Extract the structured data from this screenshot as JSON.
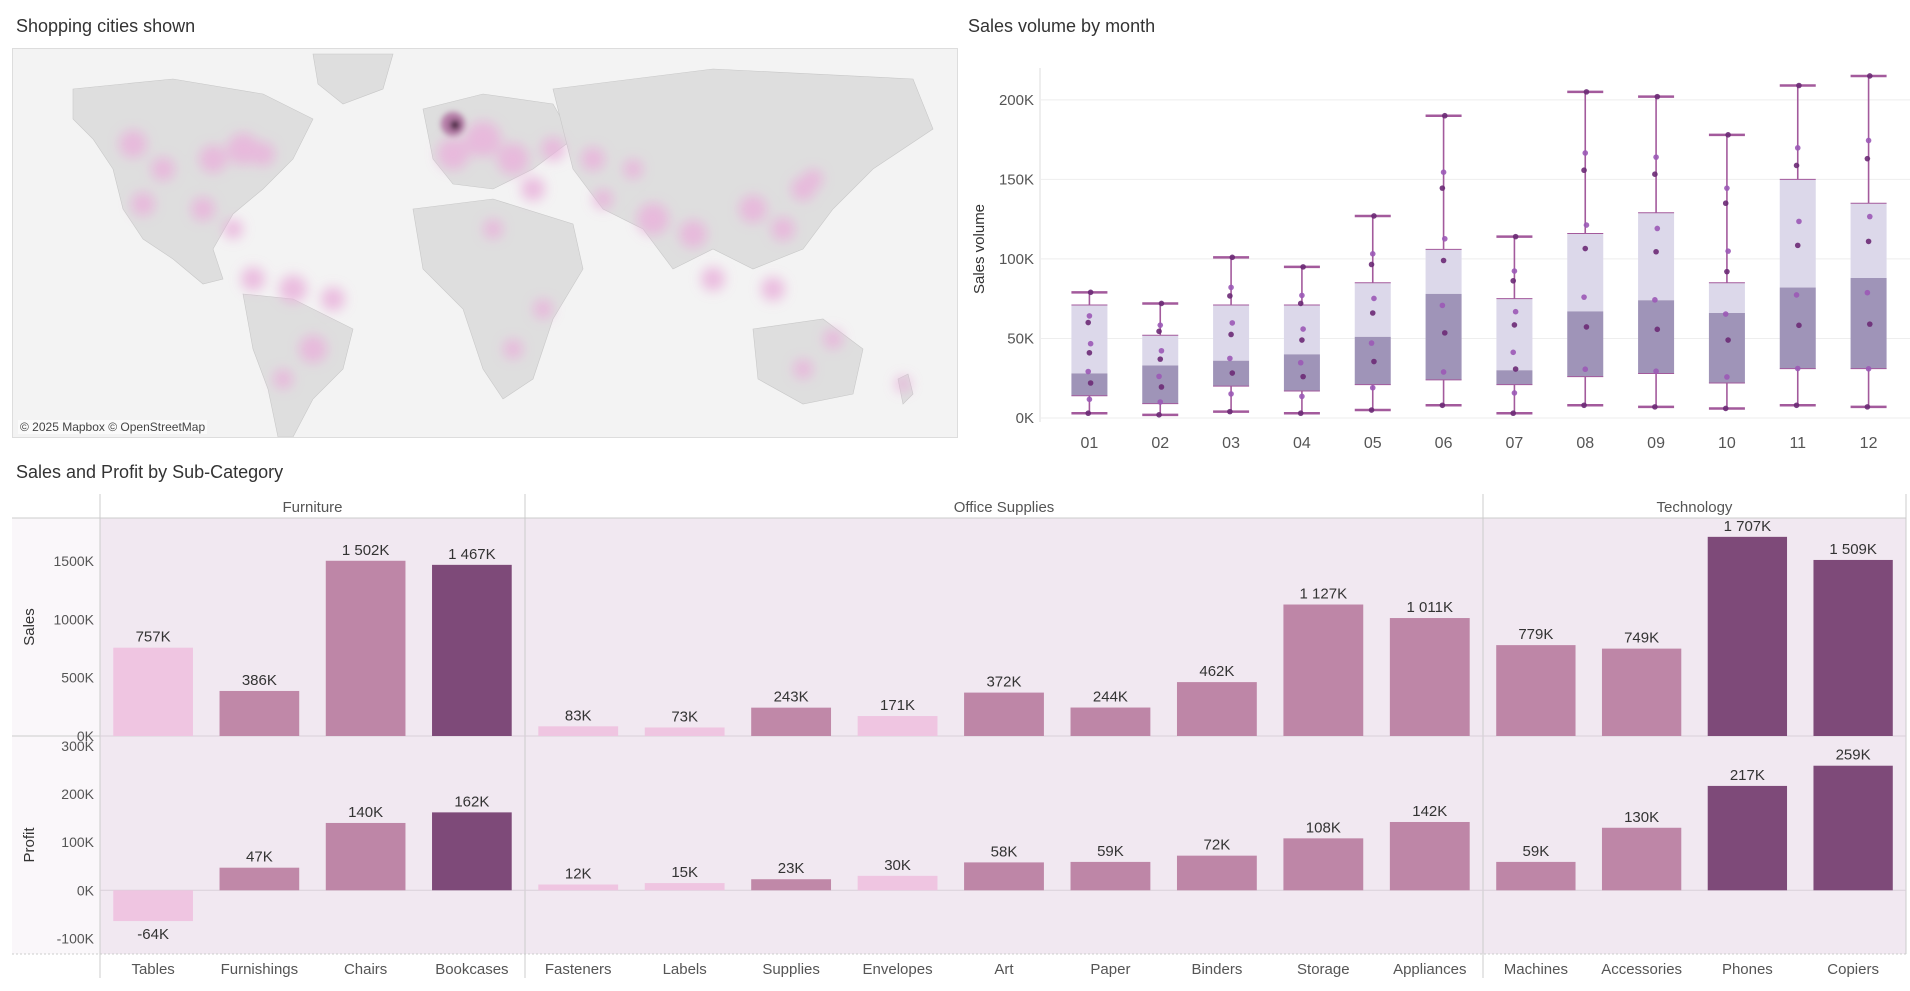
{
  "map": {
    "title": "Shopping cities shown",
    "attribution": "© 2025 Mapbox © OpenStreetMap"
  },
  "box": {
    "title": "Sales volume by month",
    "chart_data": {
      "type": "box",
      "x": [
        "01",
        "02",
        "03",
        "04",
        "05",
        "06",
        "07",
        "08",
        "09",
        "10",
        "11",
        "12"
      ],
      "ylabel": "Sales volume",
      "ylim": [
        0,
        220000
      ],
      "yticks": [
        0,
        50000,
        100000,
        150000,
        200000
      ],
      "ytick_labels": [
        "0K",
        "50K",
        "100K",
        "150K",
        "200K"
      ],
      "whisker_low": [
        3000,
        2000,
        4000,
        3000,
        5000,
        8000,
        3000,
        8000,
        7000,
        6000,
        8000,
        7000
      ],
      "q1": [
        14000,
        9000,
        20000,
        17000,
        21000,
        24000,
        21000,
        26000,
        28000,
        22000,
        31000,
        31000
      ],
      "median": [
        28000,
        33000,
        36000,
        40000,
        51000,
        78000,
        30000,
        67000,
        74000,
        66000,
        82000,
        88000
      ],
      "q3": [
        71000,
        52000,
        71000,
        71000,
        85000,
        106000,
        75000,
        116000,
        129000,
        85000,
        150000,
        135000
      ],
      "whisker_high": [
        79000,
        72000,
        101000,
        95000,
        127000,
        190000,
        114000,
        205000,
        202000,
        178000,
        209000,
        215000
      ]
    },
    "colors": {
      "iqr_light": "#dcd8ea",
      "iqr_dark": "#9f94b8",
      "whisker": "#a35a9c",
      "dots": "#6c2a76"
    }
  },
  "bars": {
    "title": "Sales and Profit by Sub-Category",
    "chart_data": {
      "type": "bar",
      "groups": [
        {
          "name": "Furniture",
          "categories": [
            "Tables",
            "Furnishings",
            "Chairs",
            "Bookcases"
          ]
        },
        {
          "name": "Office Supplies",
          "categories": [
            "Fasteners",
            "Labels",
            "Supplies",
            "Envelopes",
            "Art",
            "Paper",
            "Binders",
            "Storage",
            "Appliances"
          ]
        },
        {
          "name": "Technology",
          "categories": [
            "Machines",
            "Accessories",
            "Phones",
            "Copiers"
          ]
        }
      ],
      "series": [
        {
          "name": "Sales",
          "values": [
            757,
            386,
            1502,
            1467,
            83,
            73,
            243,
            171,
            372,
            244,
            462,
            1127,
            1011,
            779,
            749,
            1707,
            1509
          ],
          "labels": [
            "757K",
            "386K",
            "1 502K",
            "1 467K",
            "83K",
            "73K",
            "243K",
            "171K",
            "372K",
            "244K",
            "462K",
            "1 127K",
            "1 011K",
            "779K",
            "749K",
            "1 707K",
            "1 509K"
          ],
          "ylim": [
            0,
            1800
          ],
          "yticks": [
            0,
            500,
            1000,
            1500
          ],
          "ytick_labels": [
            "0K",
            "500K",
            "1000K",
            "1500K"
          ]
        },
        {
          "name": "Profit",
          "values": [
            -64,
            47,
            140,
            162,
            12,
            15,
            23,
            30,
            58,
            59,
            72,
            108,
            142,
            59,
            130,
            217,
            259
          ],
          "labels": [
            "-64K",
            "47K",
            "140K",
            "162K",
            "12K",
            "15K",
            "23K",
            "30K",
            "58K",
            "59K",
            "72K",
            "108K",
            "142K",
            "59K",
            "130K",
            "217K",
            "259K"
          ],
          "ylim": [
            -120,
            300
          ],
          "yticks": [
            -100,
            0,
            100,
            200,
            300
          ],
          "ytick_labels": [
            "-100K",
            "0K",
            "100K",
            "200K",
            "300K"
          ]
        }
      ],
      "color_levels": [
        1,
        2,
        3,
        4,
        1,
        1,
        2,
        1,
        3,
        3,
        3,
        3,
        3,
        3,
        3,
        4,
        4
      ]
    },
    "colors": {
      "level1": "#efc5e1",
      "level2": "#c088a8",
      "level3": "#be86a7",
      "level4": "#7e4a79",
      "panel_bg": "#f1e8f1"
    }
  }
}
